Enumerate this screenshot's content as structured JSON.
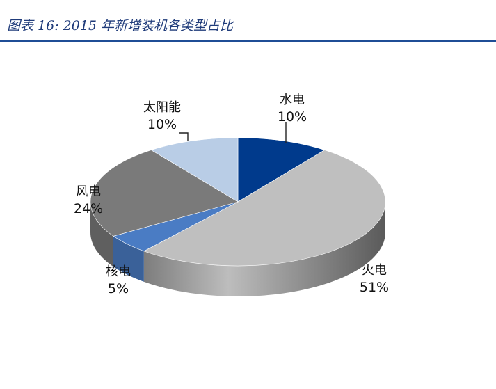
{
  "figure": {
    "title": "图表 16:  2015 年新增装机各类型占比"
  },
  "chart_data": {
    "type": "pie",
    "title": "",
    "legend": "none",
    "slices": [
      {
        "label": "水电",
        "value": 10,
        "display": "10%",
        "color": "#003a8c"
      },
      {
        "label": "火电",
        "value": 51,
        "display": "51%",
        "color": "#bfbfbf"
      },
      {
        "label": "核电",
        "value": 5,
        "display": "5%",
        "color": "#4a7cc4"
      },
      {
        "label": "风电",
        "value": 24,
        "display": "24%",
        "color": "#7a7a7a"
      },
      {
        "label": "太阳能",
        "value": 10,
        "display": "10%",
        "color": "#b9cde6"
      }
    ]
  }
}
